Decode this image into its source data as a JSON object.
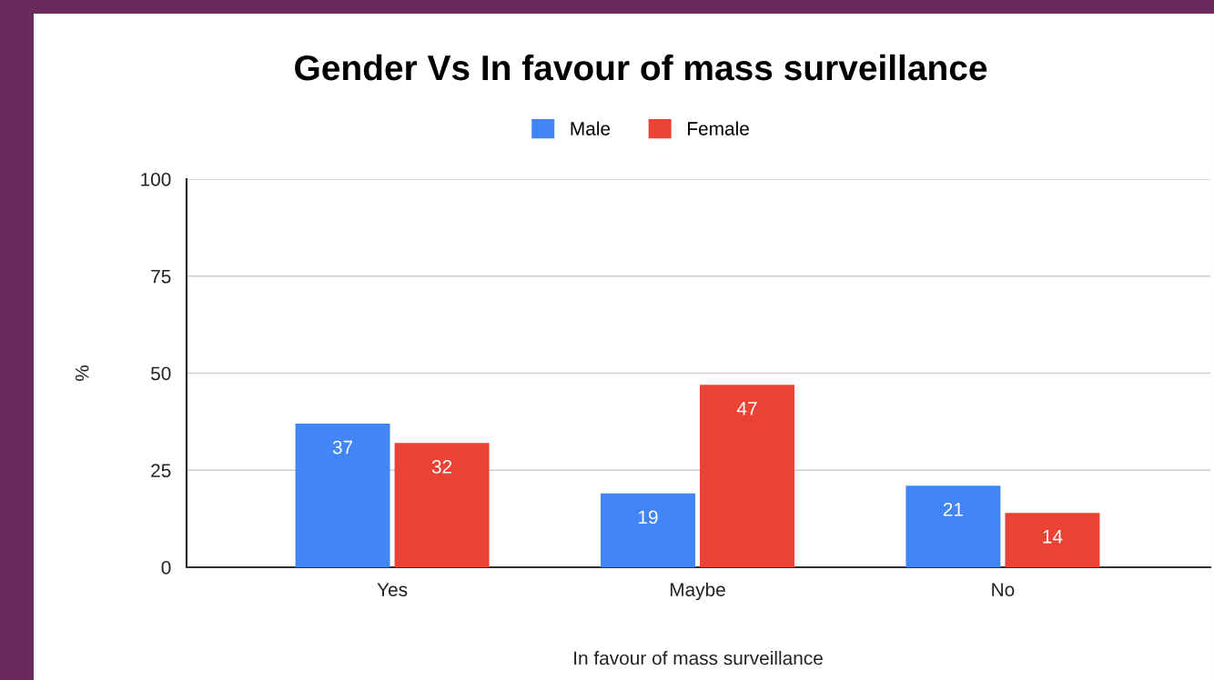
{
  "chart_data": {
    "type": "bar",
    "title": "Gender Vs In favour of mass surveillance",
    "xlabel": "In favour of mass surveillance",
    "ylabel": "%",
    "categories": [
      "Yes",
      "Maybe",
      "No"
    ],
    "series": [
      {
        "name": "Male",
        "color": "#4285f4",
        "values": [
          37,
          19,
          21
        ]
      },
      {
        "name": "Female",
        "color": "#ea4335",
        "values": [
          32,
          47,
          14
        ]
      }
    ],
    "ylim": [
      0,
      100
    ],
    "yticks": [
      0,
      25,
      50,
      75,
      100
    ],
    "grid": "y",
    "legend": "top",
    "data_labels": true
  }
}
